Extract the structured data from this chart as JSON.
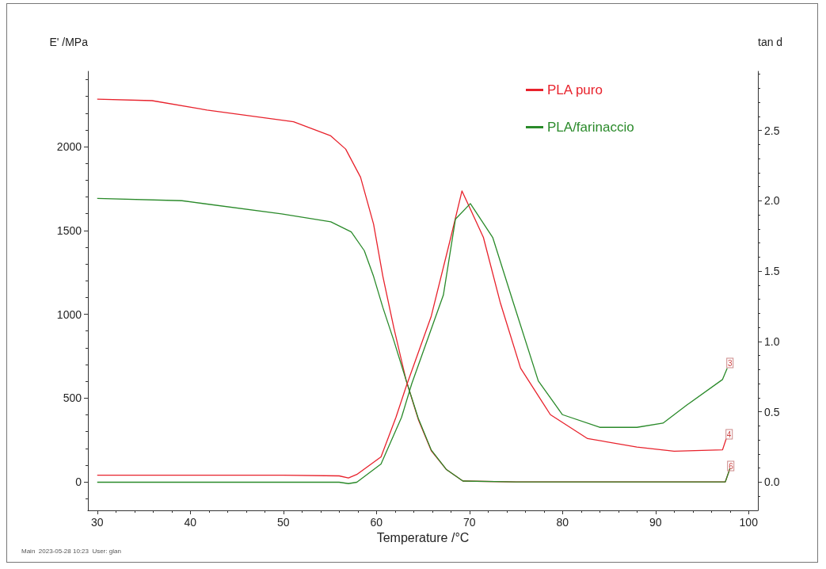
{
  "chart_data": {
    "type": "line",
    "xlabel": "Temperature /°C",
    "ylabel": "E' /MPa",
    "y2label": "tan d",
    "xlim": [
      29,
      101
    ],
    "xticks": [
      30,
      40,
      50,
      60,
      70,
      80,
      90,
      100
    ],
    "ylim": [
      -170,
      2450
    ],
    "yticks": [
      0,
      500,
      1000,
      1500,
      2000
    ],
    "y2lim": [
      -0.2,
      2.92
    ],
    "y2ticks": [
      {
        "value": 0,
        "label": "0.0"
      },
      0.5,
      {
        "value": 1,
        "label": "1.0"
      },
      1.5,
      {
        "value": 2,
        "label": "2.0"
      },
      2.5
    ],
    "grid": false,
    "legend": "top",
    "marker": "none",
    "line_style": "solid",
    "series": [
      {
        "name": "PLA puro",
        "color": "#e8222c",
        "x": [
          30,
          35.9,
          41.8,
          51.1,
          55.1,
          56.7,
          58.3,
          59.7,
          60.7,
          61.9,
          63.2,
          64.5,
          65.9,
          67.5,
          69.3,
          75,
          85,
          97.5,
          98
        ],
        "values": [
          2284,
          2275,
          2219,
          2149,
          2065,
          1986,
          1818,
          1538,
          1226,
          914,
          606,
          373,
          186,
          75,
          5,
          0,
          0,
          0,
          80
        ]
      },
      {
        "name": "PLA/farinaccio",
        "color": "#2a8a2a",
        "x": [
          30,
          39.1,
          49.8,
          55.1,
          57.3,
          58.7,
          59.7,
          60.7,
          61.9,
          63.2,
          64.5,
          65.9,
          67.5,
          69.3,
          75,
          97.5,
          98
        ],
        "values": [
          1692,
          1678,
          1599,
          1552,
          1492,
          1380,
          1226,
          1040,
          839,
          606,
          380,
          190,
          75,
          5,
          0,
          0,
          80
        ]
      },
      {
        "color": "#e8222c",
        "axis": "y2",
        "x": [
          30,
          40,
          50,
          56,
          57,
          57.9,
          60.5,
          62.1,
          63.2,
          65.9,
          68,
          69.2,
          71.5,
          73.3,
          75.5,
          78.7,
          82.7,
          88,
          92,
          97.2,
          97.6
        ],
        "values": [
          0.05,
          0.05,
          0.05,
          0.045,
          0.03,
          0.055,
          0.18,
          0.46,
          0.68,
          1.18,
          1.74,
          2.07,
          1.74,
          1.28,
          0.81,
          0.48,
          0.31,
          0.25,
          0.22,
          0.23,
          0.31
        ]
      },
      {
        "color": "#2a8a2a",
        "axis": "y2",
        "x": [
          30,
          40,
          50,
          56,
          57,
          57.9,
          60.5,
          62.7,
          63.8,
          67.2,
          68.5,
          70.1,
          72.5,
          74.7,
          77.4,
          80,
          84,
          88,
          90.8,
          93.4,
          97.2,
          97.7
        ],
        "values": [
          0.0,
          0.0,
          0.0,
          0.0,
          -0.01,
          0.0,
          0.13,
          0.46,
          0.7,
          1.33,
          1.87,
          1.98,
          1.74,
          1.28,
          0.72,
          0.48,
          0.39,
          0.39,
          0.42,
          0.55,
          0.73,
          0.81
        ]
      }
    ],
    "annotations": [
      {
        "text": "3",
        "x": 98,
        "y": 710
      },
      {
        "text": "4",
        "x": 97.9,
        "y": 285
      },
      {
        "text": "6",
        "x": 98.1,
        "y": 95
      },
      "Main  2023-05-28 10:23  User: glan"
    ]
  }
}
